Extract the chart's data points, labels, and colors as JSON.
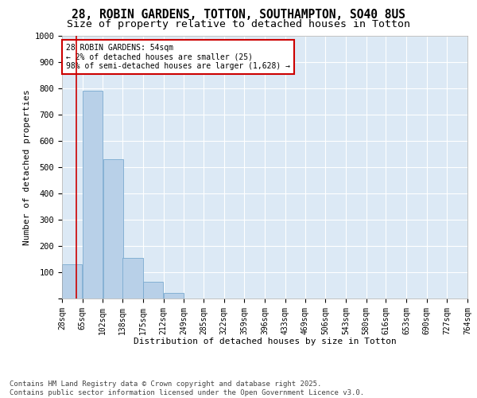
{
  "title_line1": "28, ROBIN GARDENS, TOTTON, SOUTHAMPTON, SO40 8US",
  "title_line2": "Size of property relative to detached houses in Totton",
  "xlabel": "Distribution of detached houses by size in Totton",
  "ylabel": "Number of detached properties",
  "background_color": "#dce9f5",
  "fig_background_color": "#ffffff",
  "bar_color": "#b8d0e8",
  "bar_edge_color": "#7aaad0",
  "grid_color": "#ffffff",
  "annotation_box_edgecolor": "#cc0000",
  "vline_color": "#cc0000",
  "vline_x": 54,
  "annotation_text": "28 ROBIN GARDENS: 54sqm\n← 2% of detached houses are smaller (25)\n98% of semi-detached houses are larger (1,628) →",
  "footer_line1": "Contains HM Land Registry data © Crown copyright and database right 2025.",
  "footer_line2": "Contains public sector information licensed under the Open Government Licence v3.0.",
  "bin_edges": [
    28,
    65,
    102,
    138,
    175,
    212,
    249,
    285,
    322,
    359,
    396,
    433,
    469,
    506,
    543,
    580,
    616,
    653,
    690,
    727,
    764
  ],
  "bar_heights": [
    130,
    790,
    530,
    155,
    65,
    20,
    0,
    0,
    0,
    0,
    0,
    0,
    0,
    0,
    0,
    0,
    0,
    0,
    0,
    0
  ],
  "tick_labels": [
    "28sqm",
    "65sqm",
    "102sqm",
    "138sqm",
    "175sqm",
    "212sqm",
    "249sqm",
    "285sqm",
    "322sqm",
    "359sqm",
    "396sqm",
    "433sqm",
    "469sqm",
    "506sqm",
    "543sqm",
    "580sqm",
    "616sqm",
    "653sqm",
    "690sqm",
    "727sqm",
    "764sqm"
  ],
  "ylim": [
    0,
    1000
  ],
  "yticks": [
    0,
    100,
    200,
    300,
    400,
    500,
    600,
    700,
    800,
    900,
    1000
  ],
  "title_fontsize": 10.5,
  "subtitle_fontsize": 9.5,
  "axis_label_fontsize": 8,
  "tick_fontsize": 7,
  "annotation_fontsize": 7,
  "footer_fontsize": 6.5
}
